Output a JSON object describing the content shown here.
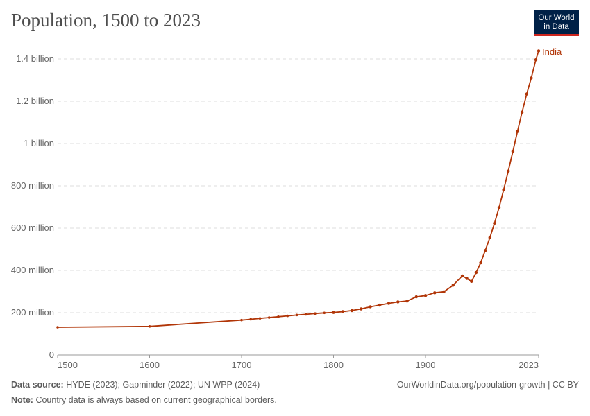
{
  "title": "Population, 1500 to 2023",
  "logo": {
    "line1": "Our World",
    "line2": "in Data"
  },
  "footer": {
    "source_label": "Data source:",
    "source": "HYDE (2023); Gapminder (2022); UN WPP (2024)",
    "link": "OurWorldinData.org/population-growth | CC BY",
    "note_label": "Note:",
    "note": "Country data is always based on current geographical borders."
  },
  "chart_data": {
    "type": "line",
    "title": "Population, 1500 to 2023",
    "xlim": [
      1500,
      2023
    ],
    "ylim": [
      0,
      1400000000
    ],
    "x_ticks": [
      {
        "v": 1500,
        "label": "1500"
      },
      {
        "v": 1600,
        "label": "1600"
      },
      {
        "v": 1700,
        "label": "1700"
      },
      {
        "v": 1800,
        "label": "1800"
      },
      {
        "v": 1900,
        "label": "1900"
      },
      {
        "v": 2023,
        "label": "2023"
      }
    ],
    "y_ticks": [
      {
        "v": 0,
        "label": "0"
      },
      {
        "v": 200000000,
        "label": "200 million"
      },
      {
        "v": 400000000,
        "label": "400 million"
      },
      {
        "v": 600000000,
        "label": "600 million"
      },
      {
        "v": 800000000,
        "label": "800 million"
      },
      {
        "v": 1000000000,
        "label": "1 billion"
      },
      {
        "v": 1200000000,
        "label": "1.2 billion"
      },
      {
        "v": 1400000000,
        "label": "1.4 billion"
      }
    ],
    "grid": true,
    "color": "#b13507",
    "series": [
      {
        "name": "India",
        "x": [
          1500,
          1600,
          1700,
          1710,
          1720,
          1730,
          1740,
          1750,
          1760,
          1770,
          1780,
          1790,
          1800,
          1810,
          1820,
          1830,
          1840,
          1850,
          1860,
          1870,
          1880,
          1890,
          1900,
          1910,
          1920,
          1930,
          1940,
          1945,
          1950,
          1955,
          1960,
          1965,
          1970,
          1975,
          1980,
          1985,
          1990,
          1995,
          2000,
          2005,
          2010,
          2015,
          2020,
          2023
        ],
        "y": [
          131000000,
          135000000,
          165000000,
          169000000,
          173000000,
          177000000,
          181000000,
          185000000,
          189000000,
          192000000,
          196000000,
          199000000,
          201000000,
          205000000,
          210000000,
          218000000,
          228000000,
          236000000,
          244000000,
          251000000,
          255000000,
          275000000,
          281000000,
          294000000,
          299000000,
          330000000,
          374000000,
          362000000,
          348000000,
          390000000,
          436000000,
          494000000,
          555000000,
          623000000,
          697000000,
          781000000,
          870000000,
          963000000,
          1057000000,
          1148000000,
          1234000000,
          1310000000,
          1396000000,
          1438000000
        ]
      }
    ]
  }
}
